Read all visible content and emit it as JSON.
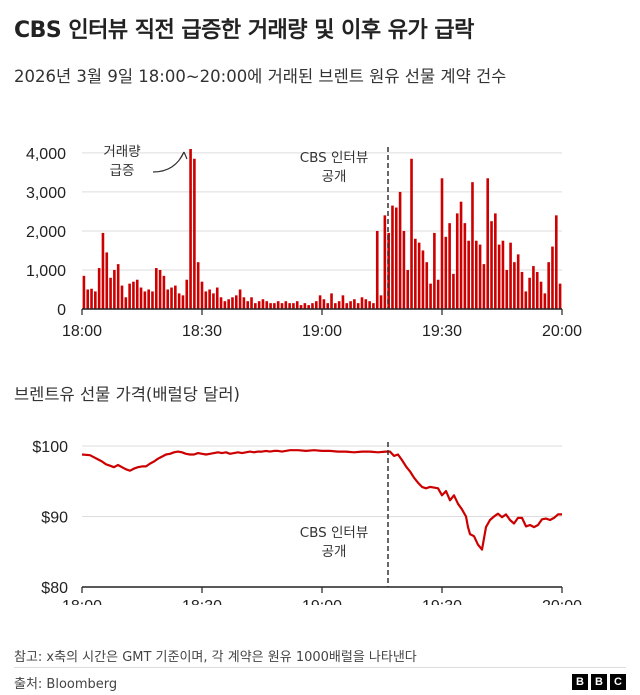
{
  "title": "CBS 인터뷰 직전 급증한 거래량 및 이후 유가 급락",
  "footnote": "참고: x축의 시간은 GMT 기준이며, 각 계약은 원유 1000배럴을 나타낸다",
  "source": "출처: Bloomberg",
  "logo": [
    "B",
    "B",
    "C"
  ],
  "colors": {
    "bar": "#cc0000",
    "line": "#cc0000",
    "grid": "#dddddd",
    "axis": "#222222"
  },
  "chart_data": [
    {
      "type": "bar",
      "title": "2026년 3월 9일 18:00~20:00에 거래된 브렌트 원유 선물 계약 건수",
      "x_tick_labels": [
        "18:00",
        "18:30",
        "19:00",
        "19:30",
        "20:00"
      ],
      "x_ticks_min": [
        0,
        30,
        60,
        90,
        120
      ],
      "xlim_min": [
        0,
        120
      ],
      "y_tick_labels": [
        "0",
        "1,000",
        "2,000",
        "3,000",
        "4,000"
      ],
      "y_ticks": [
        0,
        1000,
        2000,
        3000,
        4000
      ],
      "ylim": [
        0,
        4100
      ],
      "grid": true,
      "annotations": [
        {
          "lines": [
            "거래량",
            "급증"
          ],
          "x": 27.5,
          "y": 4150
        },
        {
          "lines": [
            "CBS 인터뷰",
            "공개"
          ],
          "x": 76.5,
          "y": 4000
        }
      ],
      "event_line_x": 76.5,
      "values": [
        850,
        500,
        520,
        450,
        1050,
        1950,
        1450,
        800,
        1000,
        1150,
        600,
        300,
        650,
        700,
        750,
        550,
        450,
        500,
        450,
        1050,
        1000,
        850,
        500,
        550,
        600,
        400,
        350,
        750,
        4100,
        3850,
        1200,
        700,
        450,
        500,
        400,
        550,
        300,
        200,
        250,
        300,
        350,
        500,
        300,
        200,
        300,
        150,
        200,
        250,
        200,
        150,
        150,
        200,
        150,
        200,
        150,
        150,
        200,
        100,
        150,
        100,
        150,
        200,
        350,
        250,
        150,
        400,
        150,
        200,
        350,
        150,
        200,
        250,
        150,
        300,
        250,
        200,
        150,
        2000,
        350,
        2400,
        1950,
        2650,
        2600,
        3000,
        2000,
        1000,
        3850,
        1800,
        1700,
        1500,
        1200,
        650,
        1950,
        750,
        3350,
        1850,
        2200,
        900,
        2450,
        2750,
        2200,
        1750,
        3250,
        1750,
        1650,
        1150,
        3350,
        2250,
        2450,
        1650,
        1750,
        1000,
        1700,
        1200,
        1400,
        950,
        450,
        800,
        1100,
        950,
        700,
        400,
        1200,
        1600,
        2400,
        650
      ]
    },
    {
      "type": "line",
      "title": "브렌트유 선물 가격(배럴당 달러)",
      "x_tick_labels": [
        "18:00",
        "18:30",
        "19:00",
        "19:30",
        "20:00"
      ],
      "x_ticks_min": [
        0,
        30,
        60,
        90,
        120
      ],
      "xlim_min": [
        0,
        120
      ],
      "y_tick_labels": [
        "$80",
        "$90",
        "$100"
      ],
      "y_ticks": [
        80,
        90,
        100
      ],
      "ylim": [
        80,
        100
      ],
      "grid": true,
      "annotations": [
        {
          "lines": [
            "CBS 인터뷰",
            "공개"
          ],
          "x": 76.5,
          "y": 89.2
        }
      ],
      "event_line_x": 76.5,
      "x_min": [
        0,
        2,
        3,
        4,
        5,
        6,
        7,
        8,
        9,
        10,
        11,
        12,
        13,
        14,
        15,
        16,
        17,
        18,
        19,
        20,
        21,
        22,
        23,
        24,
        25,
        26,
        27,
        28,
        29,
        30,
        31,
        32,
        33,
        34,
        35,
        36,
        37,
        38,
        39,
        40,
        41,
        42,
        43,
        44,
        45,
        46,
        47,
        48,
        49,
        50,
        52,
        54,
        56,
        58,
        60,
        62,
        64,
        66,
        68,
        70,
        72,
        74,
        76,
        77,
        78,
        79,
        80,
        81,
        82,
        83,
        84,
        85,
        86,
        87,
        88,
        89,
        90,
        91,
        92,
        93,
        94,
        95,
        96,
        96.5,
        97,
        98,
        99,
        100,
        101,
        102,
        103,
        104,
        105,
        106,
        107,
        108,
        109,
        110,
        111,
        112,
        113,
        114,
        115,
        116,
        117,
        118,
        119,
        120
      ],
      "y": [
        98.8,
        98.7,
        98.4,
        98.1,
        97.8,
        97.4,
        97.2,
        97.0,
        97.3,
        97.0,
        96.7,
        96.5,
        96.8,
        97.0,
        97.1,
        97.1,
        97.5,
        97.8,
        98.2,
        98.5,
        98.8,
        98.9,
        99.1,
        99.2,
        99.1,
        98.9,
        98.8,
        98.8,
        99.0,
        98.9,
        98.8,
        98.9,
        99.0,
        99.1,
        99.0,
        99.1,
        98.9,
        99.0,
        99.1,
        99.0,
        99.1,
        99.2,
        99.1,
        99.2,
        99.2,
        99.3,
        99.2,
        99.3,
        99.3,
        99.2,
        99.4,
        99.4,
        99.3,
        99.4,
        99.3,
        99.3,
        99.2,
        99.2,
        99.1,
        99.2,
        99.2,
        99.1,
        99.2,
        99.2,
        98.6,
        98.8,
        98.0,
        97.1,
        96.4,
        95.5,
        94.8,
        94.2,
        94.0,
        94.2,
        94.1,
        94.0,
        93.0,
        93.6,
        92.3,
        93.0,
        91.8,
        91.0,
        90.0,
        88.5,
        87.5,
        87.2,
        86.0,
        85.3,
        88.5,
        89.5,
        90.0,
        90.4,
        89.9,
        90.3,
        89.5,
        89.0,
        89.8,
        89.8,
        88.6,
        88.8,
        88.5,
        88.8,
        89.6,
        89.7,
        89.5,
        89.8,
        90.3,
        90.3
      ]
    }
  ]
}
